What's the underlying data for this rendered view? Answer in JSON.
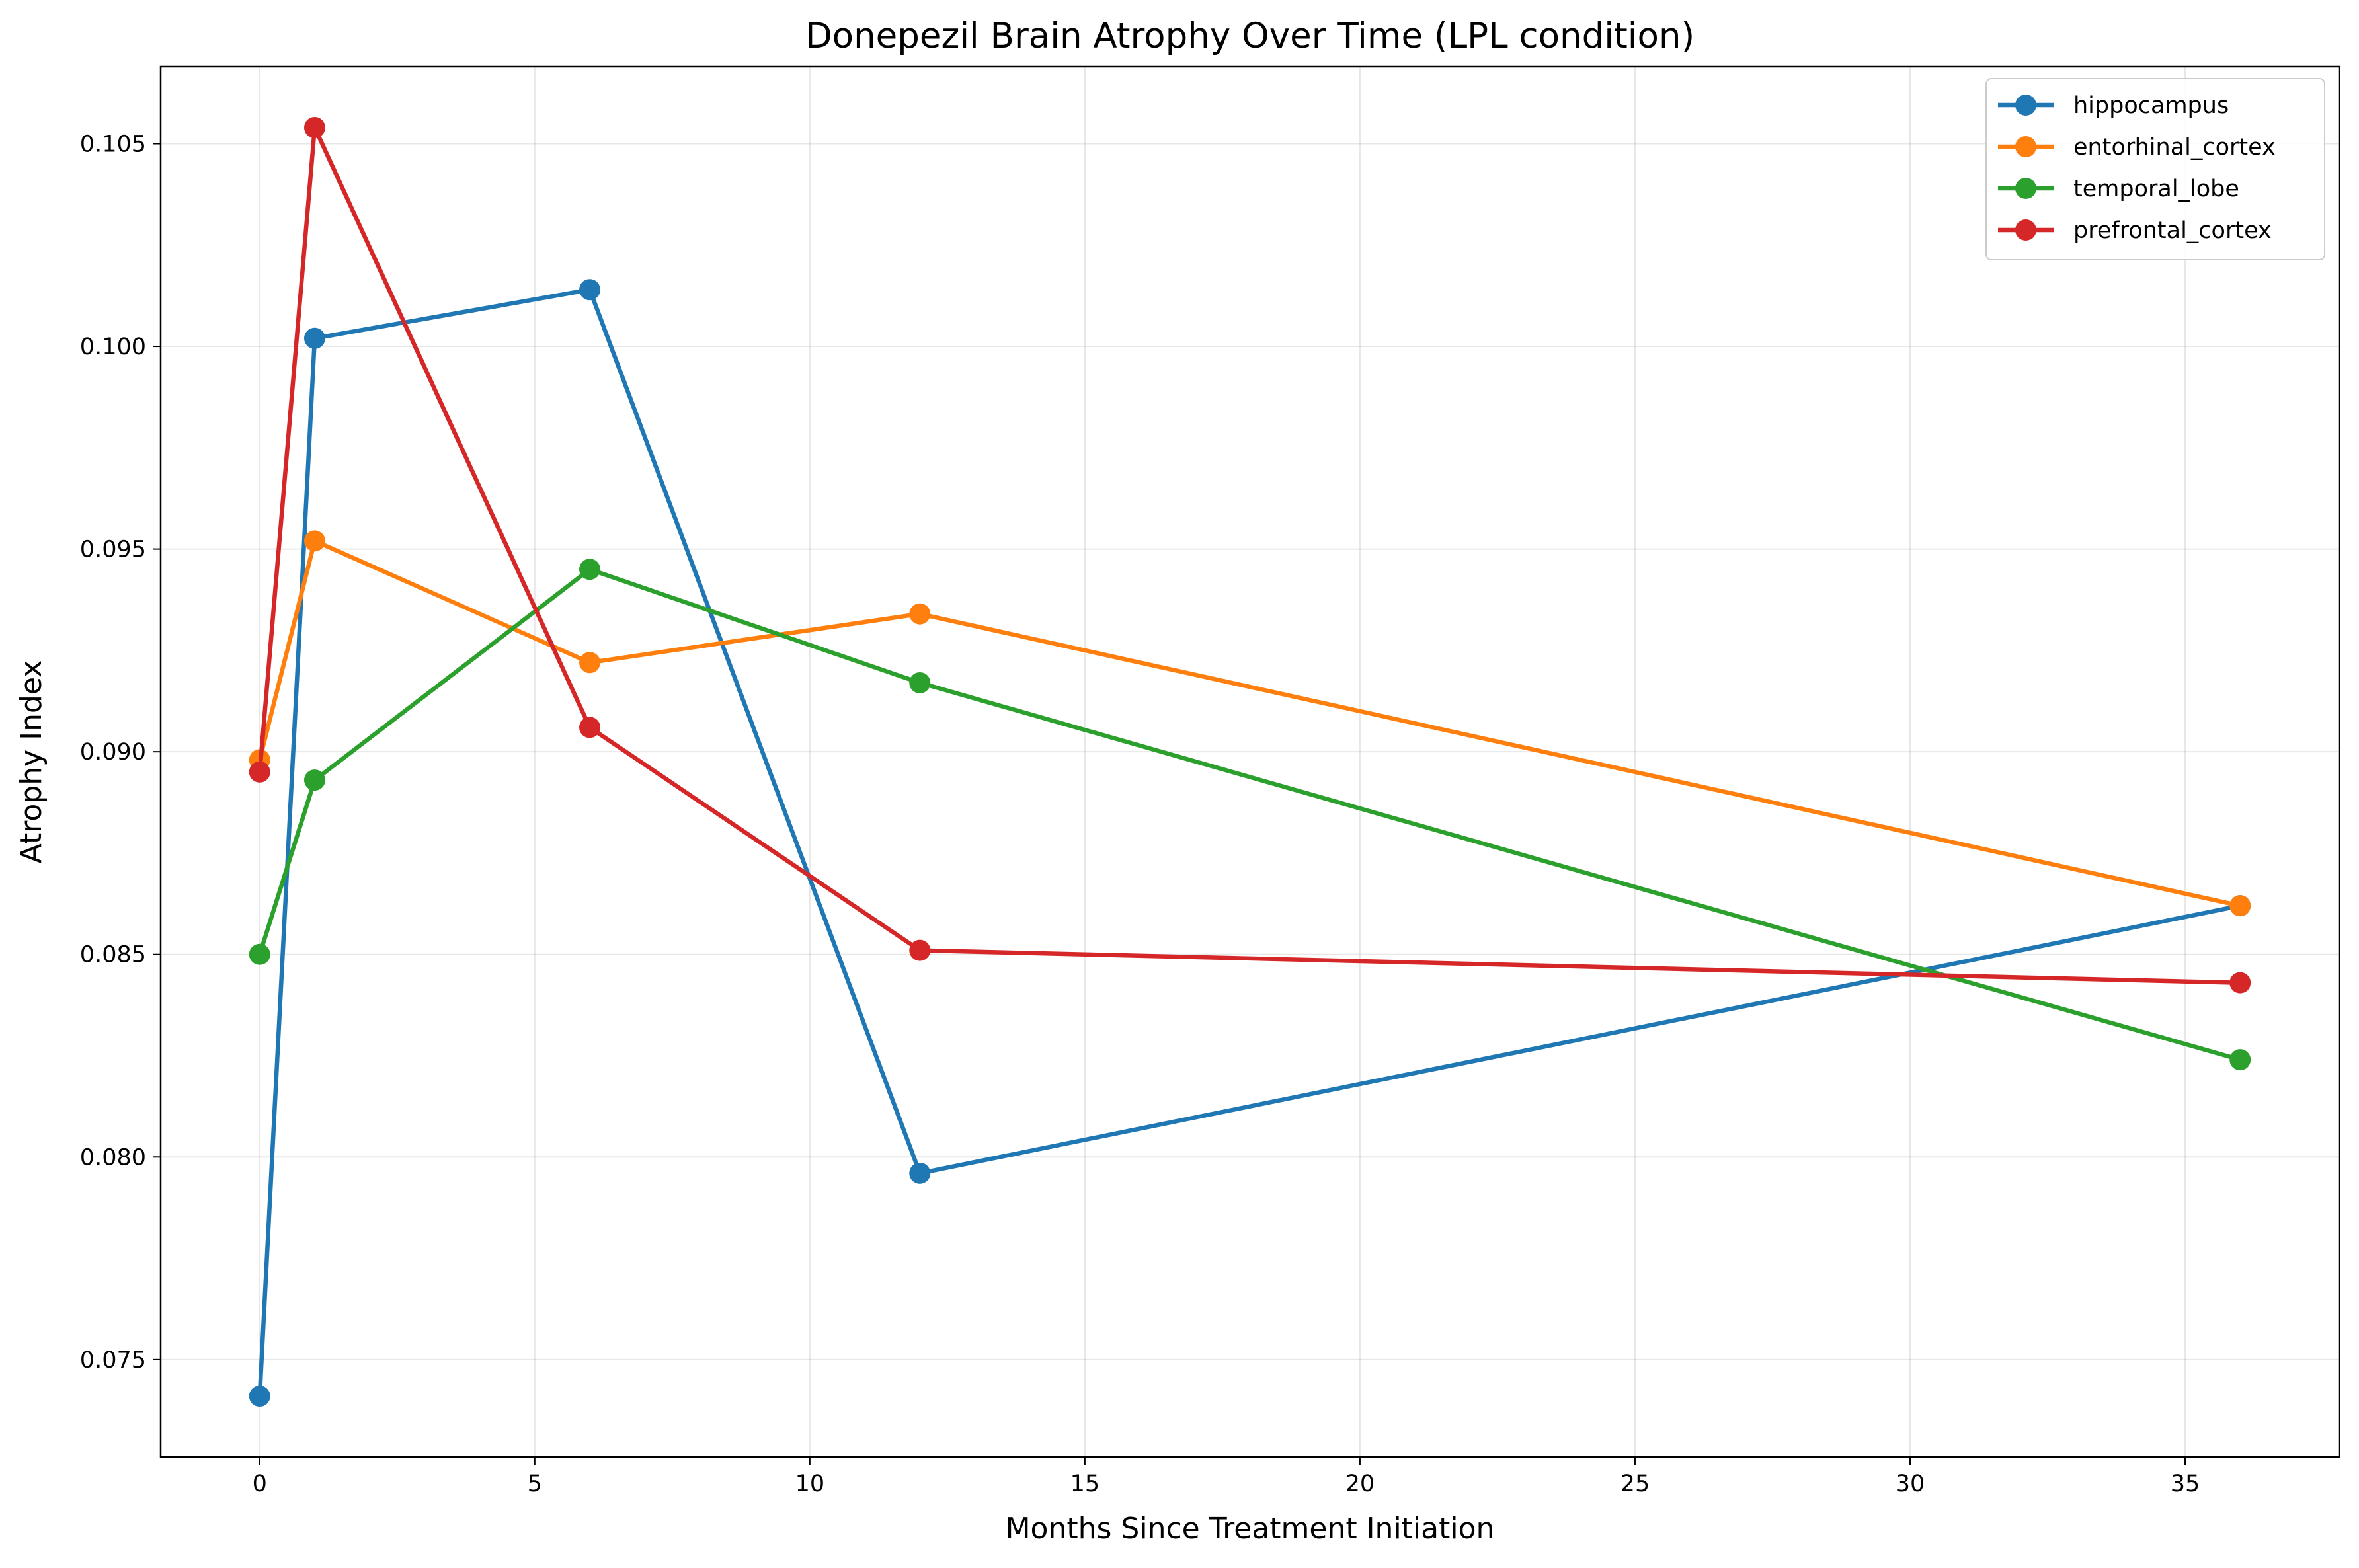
{
  "chart_data": {
    "type": "line",
    "title": "Donepezil Brain Atrophy Over Time (LPL condition)",
    "xlabel": "Months Since Treatment Initiation",
    "ylabel": "Atrophy Index",
    "x": [
      0,
      1,
      6,
      12,
      36
    ],
    "xlim": [
      -1.8,
      37.8
    ],
    "ylim": [
      0.0726,
      0.1069
    ],
    "xticks": [
      0,
      5,
      10,
      15,
      20,
      25,
      30,
      35
    ],
    "xtick_labels": [
      "0",
      "5",
      "10",
      "15",
      "20",
      "25",
      "30",
      "35"
    ],
    "yticks": [
      0.075,
      0.08,
      0.085,
      0.09,
      0.095,
      0.1,
      0.105
    ],
    "ytick_labels": [
      "0.075",
      "0.080",
      "0.085",
      "0.090",
      "0.095",
      "0.100",
      "0.105"
    ],
    "grid": true,
    "legend_position": "top-right",
    "series": [
      {
        "name": "hippocampus",
        "color": "#1f77b4",
        "values": [
          0.0741,
          0.1002,
          0.1014,
          0.0796,
          0.0862
        ]
      },
      {
        "name": "entorhinal_cortex",
        "color": "#ff7f0e",
        "values": [
          0.0898,
          0.0952,
          0.0922,
          0.0934,
          0.0862
        ]
      },
      {
        "name": "temporal_lobe",
        "color": "#2ca02c",
        "values": [
          0.085,
          0.0893,
          0.0945,
          0.0917,
          0.0824
        ]
      },
      {
        "name": "prefrontal_cortex",
        "color": "#d62728",
        "values": [
          0.0895,
          0.1054,
          0.0906,
          0.0851,
          0.0843
        ]
      }
    ]
  }
}
